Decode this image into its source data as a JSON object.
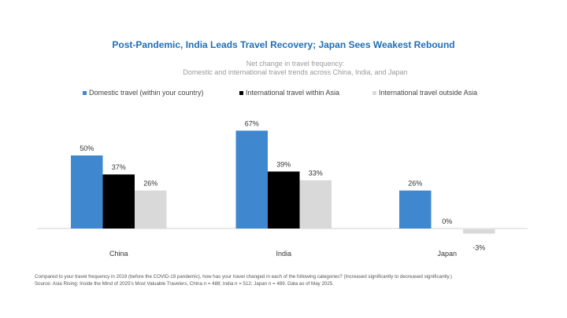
{
  "chart_data": {
    "type": "bar",
    "title": "Post-Pandemic, India Leads Travel Recovery; Japan Sees Weakest Rebound",
    "subtitle": [
      "Net change in travel frequency:",
      "Domestic and international travel trends across China, India, and Japan"
    ],
    "categories": [
      "China",
      "India",
      "Japan"
    ],
    "series": [
      {
        "name": "Domestic travel (within your country)",
        "color": "#3f88cf",
        "values": [
          50,
          67,
          26
        ],
        "labels": [
          "50%",
          "67%",
          "26%"
        ]
      },
      {
        "name": "International travel within Asia",
        "color": "#000000",
        "values": [
          37,
          39,
          0
        ],
        "labels": [
          "37%",
          "39%",
          "0%"
        ]
      },
      {
        "name": "International travel outside Asia",
        "color": "#d9d9d9",
        "values": [
          26,
          33,
          -3
        ],
        "labels": [
          "26%",
          "33%",
          "-3%"
        ]
      }
    ],
    "xlabel": "",
    "ylabel": "",
    "unit": "%",
    "grid": false,
    "legend_position": "top",
    "axis_line_color": "#d0d0d0"
  },
  "footnote": {
    "question": "Compared to your travel frequency in 2019 (before the COVID-19 pandemic), how has your travel changed in each of the following categories? (Increased significantly to decreased significantly.)",
    "source": "Source: Asia Rising: Inside the Mind of 2025's Most Valuable Travelers, China n = 488; India n = 512; Japan n = 489. Data as of May 2025."
  }
}
